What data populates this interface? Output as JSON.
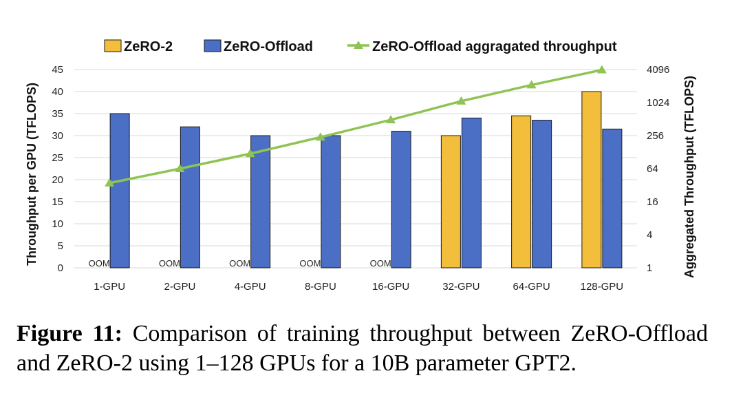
{
  "chart_data": {
    "type": "bar",
    "categories": [
      "1-GPU",
      "2-GPU",
      "4-GPU",
      "8-GPU",
      "16-GPU",
      "32-GPU",
      "64-GPU",
      "128-GPU"
    ],
    "series": [
      {
        "name": "ZeRO-2",
        "kind": "bar",
        "axis": "left",
        "color": "#F2BE3C",
        "values": [
          null,
          null,
          null,
          null,
          null,
          30,
          34.5,
          40
        ],
        "labels": [
          "OOM",
          "OOM",
          "OOM",
          "OOM",
          "OOM",
          "",
          "",
          ""
        ]
      },
      {
        "name": "ZeRO-Offload",
        "kind": "bar",
        "axis": "left",
        "color": "#4A6FC4",
        "values": [
          35,
          32,
          30,
          30,
          31,
          34,
          33.5,
          31.5
        ]
      },
      {
        "name": "ZeRO-Offload aggragated throughput",
        "kind": "line",
        "axis": "right",
        "color": "#8FC454",
        "values": [
          35,
          64,
          120,
          240,
          496,
          1088,
          2144,
          4032
        ]
      }
    ],
    "ylabel": "Throughput per GPU (TFLOPS)",
    "ylim": [
      0,
      45
    ],
    "yticks": [
      0,
      5,
      10,
      15,
      20,
      25,
      30,
      35,
      40,
      45
    ],
    "y2label": "Aggregated Throughput (TFLOPS)",
    "y2scale": "log2",
    "y2lim": [
      1,
      4096
    ],
    "y2ticks": [
      1,
      4,
      16,
      64,
      256,
      1024,
      4096
    ],
    "grid": true,
    "legend": "top"
  },
  "caption": {
    "label": "Figure 11:",
    "text": "Comparison of training throughput between ZeRO-Offload and ZeRO-2 using 1–128 GPUs for a 10B parameter GPT2."
  }
}
